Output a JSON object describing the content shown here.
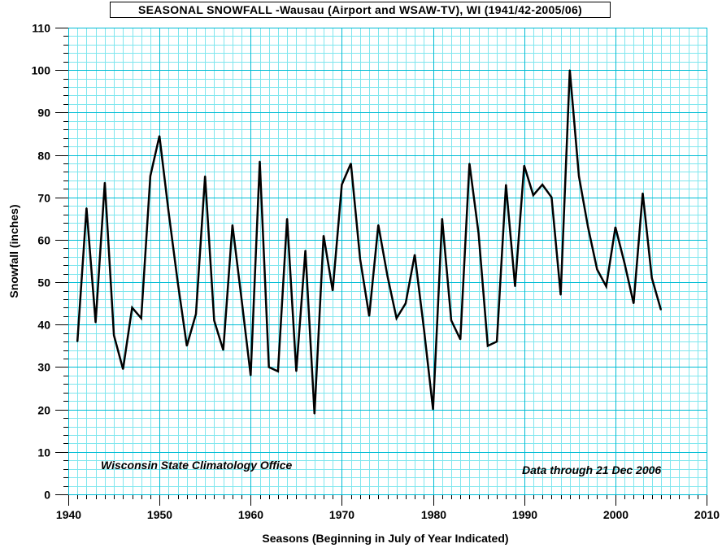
{
  "chart_data": {
    "type": "line",
    "title": "SEASONAL SNOWFALL -Wausau (Airport and WSAW-TV), WI (1941/42-2005/06)",
    "xlabel": "Seasons (Beginning in July of Year Indicated)",
    "ylabel": "Snowfall (inches)",
    "xlim": [
      1940,
      2010
    ],
    "ylim": [
      0,
      110
    ],
    "x_ticks": [
      "1940",
      "1950",
      "1960",
      "1970",
      "1980",
      "1990",
      "2000",
      "2010"
    ],
    "y_ticks": [
      "0",
      "10",
      "20",
      "30",
      "40",
      "50",
      "60",
      "70",
      "80",
      "90",
      "100",
      "110"
    ],
    "grid": true,
    "annotations": [
      "Wisconsin State Climatology Office",
      "Data through 21 Dec 2006"
    ],
    "colors": {
      "background": "#ffffff",
      "grid": "#00ccdd",
      "line": "#000000"
    },
    "series": [
      {
        "x": [
          1941,
          1942,
          1943,
          1944,
          1945,
          1946,
          1947,
          1948,
          1949,
          1950,
          1951,
          1952,
          1953,
          1954,
          1955,
          1956,
          1957,
          1958,
          1959,
          1960,
          1961,
          1962,
          1963,
          1964,
          1965,
          1966,
          1967,
          1968,
          1969,
          1970,
          1971,
          1972,
          1973,
          1974,
          1975,
          1976,
          1977,
          1978,
          1979,
          1980,
          1981,
          1982,
          1983,
          1984,
          1985,
          1986,
          1987,
          1988,
          1989,
          1990,
          1991,
          1992,
          1993,
          1994,
          1995,
          1996,
          1997,
          1998,
          1999,
          2000,
          2001,
          2002,
          2003,
          2004,
          2005
        ],
        "values": [
          36,
          67.5,
          40.5,
          73.5,
          37.5,
          29.5,
          44,
          41.5,
          75,
          84.5,
          66.5,
          50,
          35,
          42.5,
          75,
          41,
          34,
          63.5,
          46,
          28,
          78.5,
          30,
          29,
          65,
          29,
          57.5,
          19,
          61,
          48,
          73,
          78,
          55.5,
          42,
          63.5,
          51.5,
          41.5,
          45,
          56.5,
          39,
          20,
          65,
          41,
          36.5,
          78,
          61.5,
          35,
          36,
          73,
          49,
          77.5,
          70.5,
          73,
          70,
          47,
          100,
          75,
          63,
          53,
          49,
          63,
          54.5,
          45,
          71,
          51,
          43.5
        ]
      }
    ]
  }
}
